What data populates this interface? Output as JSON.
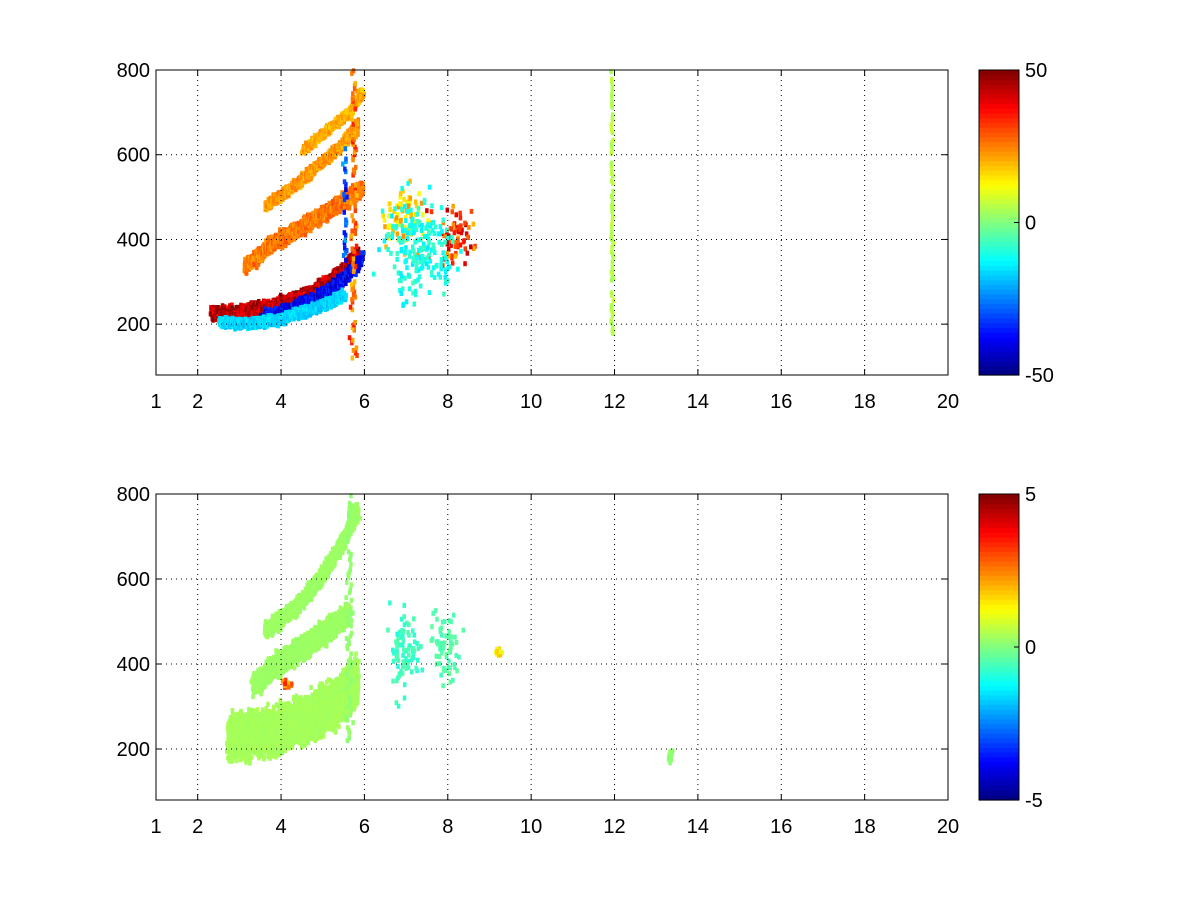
{
  "chart_data": [
    {
      "type": "heatmap",
      "title": "",
      "xlabel": "",
      "ylabel": "",
      "xlim": [
        1,
        20
      ],
      "ylim": [
        80,
        800
      ],
      "x_ticks": [
        "1",
        "2",
        "4",
        "6",
        "8",
        "10",
        "12",
        "14",
        "16",
        "18",
        "20"
      ],
      "y_ticks": [
        "200",
        "400",
        "600",
        "800"
      ],
      "grid": true,
      "colormap": "jet",
      "colorbar": {
        "min": -50,
        "max": 50,
        "ticks": [
          "50",
          "0",
          "-50"
        ]
      },
      "features": [
        {
          "kind": "curve",
          "points": [
            [
              2.3,
              225
            ],
            [
              3,
              228
            ],
            [
              3.6,
              238
            ],
            [
              4.2,
              255
            ],
            [
              4.8,
              280
            ],
            [
              5.4,
              320
            ],
            [
              5.8,
              370
            ]
          ],
          "value": 48,
          "width": 18
        },
        {
          "kind": "curve",
          "points": [
            [
              3.5,
              215
            ],
            [
              4.2,
              235
            ],
            [
              4.8,
              260
            ],
            [
              5.4,
              300
            ],
            [
              5.9,
              355
            ]
          ],
          "value": -42,
          "width": 16
        },
        {
          "kind": "curve",
          "points": [
            [
              2.5,
              205
            ],
            [
              3.2,
              200
            ],
            [
              4,
              212
            ],
            [
              4.8,
              238
            ],
            [
              5.5,
              268
            ]
          ],
          "value": -18,
          "width": 14
        },
        {
          "kind": "curve",
          "points": [
            [
              3.1,
              335
            ],
            [
              3.7,
              385
            ],
            [
              4.3,
              420
            ],
            [
              4.9,
              455
            ],
            [
              5.5,
              492
            ],
            [
              5.9,
              520
            ]
          ],
          "value": 28,
          "width": 20
        },
        {
          "kind": "curve",
          "points": [
            [
              3.6,
              480
            ],
            [
              4.2,
              520
            ],
            [
              4.8,
              570
            ],
            [
              5.4,
              620
            ],
            [
              5.8,
              670
            ]
          ],
          "value": 24,
          "width": 14
        },
        {
          "kind": "curve",
          "points": [
            [
              4.5,
              610
            ],
            [
              5.1,
              660
            ],
            [
              5.6,
              700
            ],
            [
              5.9,
              745
            ]
          ],
          "value": 22,
          "width": 12
        },
        {
          "kind": "column",
          "x": 5.7,
          "y": [
            120,
            800
          ],
          "value": 30,
          "width": 0.3
        },
        {
          "kind": "column",
          "x": 5.5,
          "y": [
            350,
            620
          ],
          "value": -35,
          "width": 0.15
        },
        {
          "kind": "blob",
          "x": 6.9,
          "y": 450,
          "rx": 0.5,
          "ry": 80,
          "value": 20
        },
        {
          "kind": "blob",
          "x": 8.1,
          "y": 410,
          "rx": 0.5,
          "ry": 70,
          "value": 38
        },
        {
          "kind": "blob",
          "x": 7.3,
          "y": 380,
          "rx": 0.8,
          "ry": 120,
          "value": -12
        },
        {
          "kind": "column",
          "x": 11.9,
          "y": [
            160,
            800
          ],
          "value": 6,
          "width": 0.1
        }
      ]
    },
    {
      "type": "heatmap",
      "title": "",
      "xlabel": "",
      "ylabel": "",
      "xlim": [
        1,
        20
      ],
      "ylim": [
        80,
        800
      ],
      "x_ticks": [
        "1",
        "2",
        "4",
        "6",
        "8",
        "10",
        "12",
        "14",
        "16",
        "18",
        "20"
      ],
      "y_ticks": [
        "200",
        "400",
        "600",
        "800"
      ],
      "grid": true,
      "colormap": "jet",
      "colorbar": {
        "min": -5,
        "max": 5,
        "ticks": [
          "5",
          "0",
          "-5"
        ]
      },
      "features": [
        {
          "kind": "curve",
          "points": [
            [
              2.7,
              225
            ],
            [
              3.4,
              235
            ],
            [
              4,
              250
            ],
            [
              4.7,
              275
            ],
            [
              5.3,
              310
            ],
            [
              5.8,
              360
            ]
          ],
          "value": 0.4,
          "width": 60
        },
        {
          "kind": "curve",
          "points": [
            [
              3.3,
              350
            ],
            [
              3.9,
              400
            ],
            [
              4.5,
              440
            ],
            [
              5.1,
              480
            ],
            [
              5.6,
              520
            ]
          ],
          "value": 0.3,
          "width": 30
        },
        {
          "kind": "curve",
          "points": [
            [
              3.6,
              480
            ],
            [
              4.3,
              530
            ],
            [
              4.9,
              600
            ],
            [
              5.4,
              680
            ],
            [
              5.8,
              760
            ]
          ],
          "value": 0.3,
          "width": 22
        },
        {
          "kind": "column",
          "x": 5.6,
          "y": [
            220,
            800
          ],
          "value": 0.2,
          "width": 0.25
        },
        {
          "kind": "blob",
          "x": 6.9,
          "y": 430,
          "rx": 0.4,
          "ry": 100,
          "value": -0.8
        },
        {
          "kind": "blob",
          "x": 7.9,
          "y": 440,
          "rx": 0.35,
          "ry": 90,
          "value": -0.5
        },
        {
          "kind": "blob",
          "x": 4.1,
          "y": 352,
          "rx": 0.15,
          "ry": 10,
          "value": 3.5
        },
        {
          "kind": "blob",
          "x": 9.2,
          "y": 428,
          "rx": 0.08,
          "ry": 8,
          "value": 1.8
        },
        {
          "kind": "blob",
          "x": 13.3,
          "y": 185,
          "rx": 0.05,
          "ry": 20,
          "value": 0.2
        }
      ]
    }
  ]
}
